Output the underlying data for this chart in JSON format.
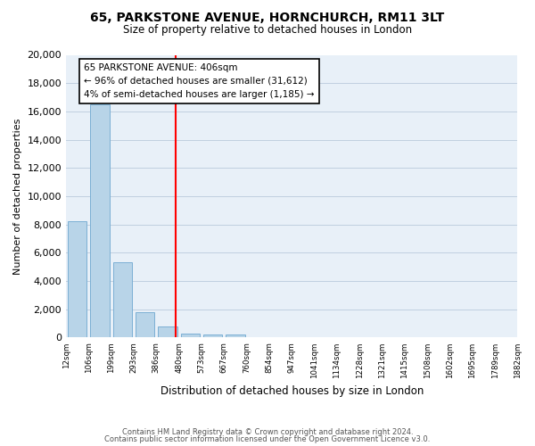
{
  "title": "65, PARKSTONE AVENUE, HORNCHURCH, RM11 3LT",
  "subtitle": "Size of property relative to detached houses in London",
  "xlabel": "Distribution of detached houses by size in London",
  "ylabel": "Number of detached properties",
  "bar_heights": [
    8200,
    16500,
    5300,
    1800,
    800,
    300,
    200,
    200,
    0,
    0,
    0,
    0,
    0,
    0,
    0,
    0,
    0,
    0,
    0,
    0
  ],
  "tick_labels": [
    "12sqm",
    "106sqm",
    "199sqm",
    "293sqm",
    "386sqm",
    "480sqm",
    "573sqm",
    "667sqm",
    "760sqm",
    "854sqm",
    "947sqm",
    "1041sqm",
    "1134sqm",
    "1228sqm",
    "1321sqm",
    "1415sqm",
    "1508sqm",
    "1602sqm",
    "1695sqm",
    "1789sqm",
    "1882sqm"
  ],
  "bar_color": "#b8d4e8",
  "bar_edge_color": "#7bafd4",
  "vline_x": 4.35,
  "vline_color": "red",
  "annotation_title": "65 PARKSTONE AVENUE: 406sqm",
  "annotation_line1": "← 96% of detached houses are smaller (31,612)",
  "annotation_line2": "4% of semi-detached houses are larger (1,185) →",
  "annotation_box_color": "white",
  "annotation_box_edge": "black",
  "ylim": [
    0,
    20000
  ],
  "yticks": [
    0,
    2000,
    4000,
    6000,
    8000,
    10000,
    12000,
    14000,
    16000,
    18000,
    20000
  ],
  "footer1": "Contains HM Land Registry data © Crown copyright and database right 2024.",
  "footer2": "Contains public sector information licensed under the Open Government Licence v3.0.",
  "plot_bg_color": "#e8f0f8"
}
